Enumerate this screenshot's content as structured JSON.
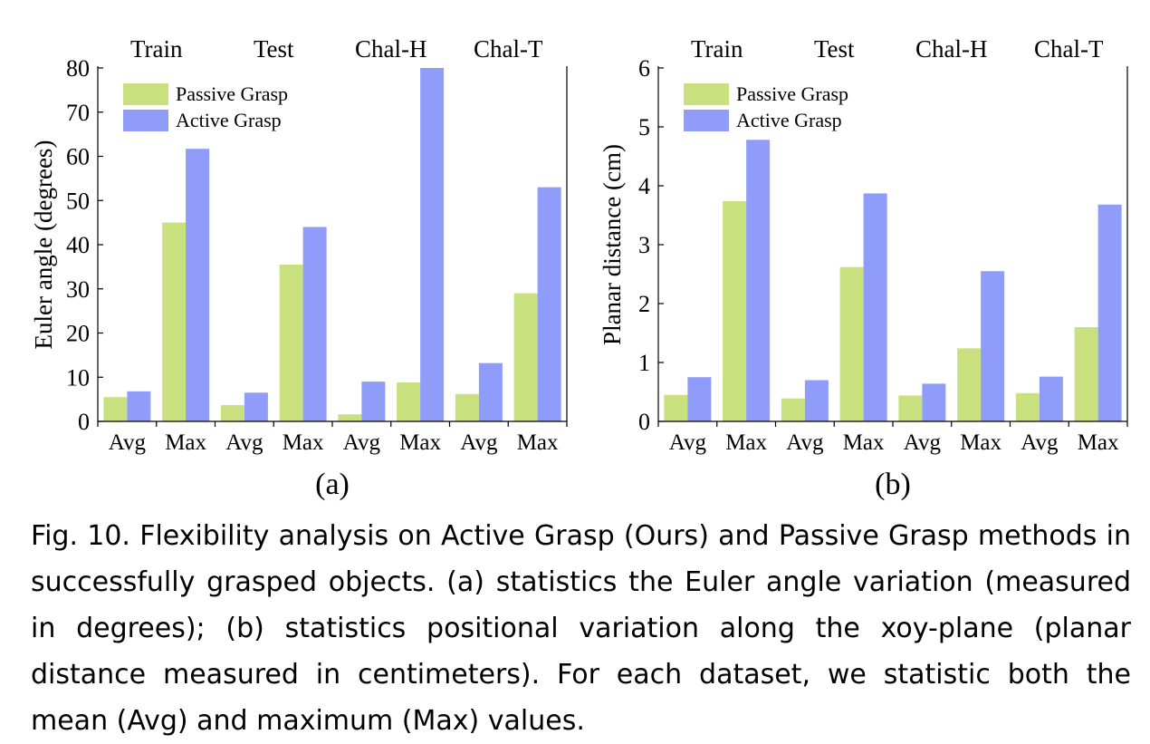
{
  "colors": {
    "passive": "#c8e07e",
    "active": "#8f9cf9"
  },
  "chart_data": [
    {
      "type": "bar",
      "panel_label": "(a)",
      "groups": [
        "Train",
        "Test",
        "Chal-H",
        "Chal-T"
      ],
      "categories": [
        "Avg",
        "Max",
        "Avg",
        "Max",
        "Avg",
        "Max",
        "Avg",
        "Max"
      ],
      "ylabel": "Euler angle (degrees)",
      "ylim": [
        0,
        80
      ],
      "yticks": [
        0,
        10,
        20,
        30,
        40,
        50,
        60,
        70,
        80
      ],
      "legend": "top-left",
      "series": [
        {
          "name": "Passive Grasp",
          "values": [
            5.5,
            45,
            3.7,
            35.5,
            1.6,
            8.8,
            6.2,
            29
          ]
        },
        {
          "name": "Active Grasp",
          "values": [
            6.8,
            61.7,
            6.5,
            44,
            9,
            80,
            13.2,
            53
          ]
        }
      ]
    },
    {
      "type": "bar",
      "panel_label": "(b)",
      "groups": [
        "Train",
        "Test",
        "Chal-H",
        "Chal-T"
      ],
      "categories": [
        "Avg",
        "Max",
        "Avg",
        "Max",
        "Avg",
        "Max",
        "Avg",
        "Max"
      ],
      "ylabel": "Planar distance (cm)",
      "ylim": [
        0,
        6
      ],
      "yticks": [
        0,
        1,
        2,
        3,
        4,
        5,
        6
      ],
      "legend": "top-left",
      "series": [
        {
          "name": "Passive Grasp",
          "values": [
            0.45,
            3.74,
            0.39,
            2.62,
            0.44,
            1.24,
            0.48,
            1.6
          ]
        },
        {
          "name": "Active Grasp",
          "values": [
            0.75,
            4.78,
            0.7,
            3.87,
            0.64,
            2.55,
            0.76,
            3.68
          ]
        }
      ]
    }
  ],
  "caption": "Fig. 10.  Flexibility analysis on Active Grasp (Ours) and Passive Grasp methods in successfully grasped objects. (a) statistics the Euler angle variation (measured in degrees); (b) statistics positional variation along the xoy-plane (planar distance measured in centimeters). For each dataset, we statistic both the mean (Avg) and maximum (Max) values."
}
